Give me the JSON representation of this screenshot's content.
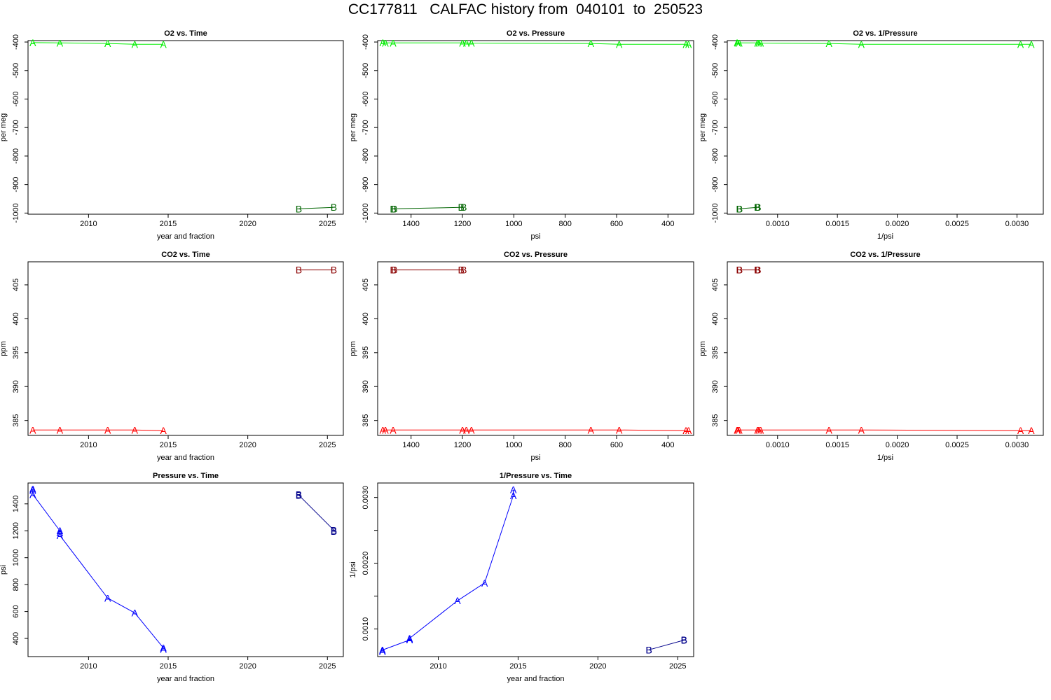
{
  "title": "CC177811   CALFAC history from  040101  to  250523",
  "colors": {
    "o2_a": "#00ee00",
    "o2_b": "#006400",
    "co2_a": "#ff0000",
    "co2_b": "#8b0000",
    "p_a": "#0000ff",
    "p_b": "#00008b"
  },
  "chart_data": [
    {
      "type": "line",
      "title": "O2 vs. Time",
      "xlabel": "year and fraction",
      "ylabel": "per meg",
      "xlim": [
        2006.2,
        2026.0
      ],
      "ylim": [
        -1004,
        -395
      ],
      "reverse_x": false,
      "xticks": [
        2010,
        2015,
        2020,
        2025
      ],
      "yticks": [
        -400,
        -500,
        -600,
        -700,
        -800,
        -900,
        -1000
      ],
      "series": [
        {
          "label": "A",
          "color": "o2_a",
          "x": [
            2006.5,
            2008.2,
            2011.2,
            2012.9,
            2014.7
          ],
          "y": [
            -402,
            -403,
            -405,
            -408,
            -408
          ]
        },
        {
          "label": "B",
          "color": "o2_b",
          "x": [
            2023.2,
            2025.4
          ],
          "y": [
            -985,
            -980
          ]
        }
      ]
    },
    {
      "type": "line",
      "title": "O2 vs. Pressure",
      "xlabel": "psi",
      "ylabel": "per meg",
      "xlim": [
        1530,
        300
      ],
      "ylim": [
        -1004,
        -395
      ],
      "reverse_x": true,
      "xticks": [
        1400,
        1200,
        1000,
        800,
        600,
        400
      ],
      "yticks": [
        -400,
        -500,
        -600,
        -700,
        -800,
        -900,
        -1000
      ],
      "series": [
        {
          "label": "A",
          "color": "o2_a",
          "x": [
            1510,
            1500,
            1470,
            1200,
            1185,
            1165,
            700,
            590,
            330,
            320
          ],
          "y": [
            -402,
            -403,
            -403,
            -403,
            -403,
            -404,
            -405,
            -408,
            -408,
            -408
          ]
        },
        {
          "label": "B",
          "color": "o2_b",
          "x": [
            1470,
            1465,
            1205,
            1195
          ],
          "y": [
            -985,
            -985,
            -980,
            -980
          ]
        }
      ]
    },
    {
      "type": "line",
      "title": "O2 vs. 1/Pressure",
      "xlabel": "1/psi",
      "ylabel": "per meg",
      "xlim": [
        0.00058,
        0.00322
      ],
      "ylim": [
        -1004,
        -395
      ],
      "reverse_x": false,
      "xticks": [
        0.001,
        0.0015,
        0.002,
        0.0025,
        0.003
      ],
      "yticks": [
        -400,
        -500,
        -600,
        -700,
        -800,
        -900,
        -1000
      ],
      "series": [
        {
          "label": "A",
          "color": "o2_a",
          "x": [
            0.000662,
            0.000667,
            0.00068,
            0.000833,
            0.000844,
            0.000858,
            0.00143,
            0.0017,
            0.00303,
            0.00312
          ],
          "y": [
            -402,
            -403,
            -403,
            -403,
            -403,
            -404,
            -405,
            -408,
            -408,
            -408
          ]
        },
        {
          "label": "B",
          "color": "o2_b",
          "x": [
            0.00068,
            0.000683,
            0.00083,
            0.000837
          ],
          "y": [
            -985,
            -985,
            -980,
            -980
          ]
        }
      ]
    },
    {
      "type": "line",
      "title": "CO2 vs. Time",
      "xlabel": "year and fraction",
      "ylabel": "ppm",
      "xlim": [
        2006.2,
        2026.0
      ],
      "ylim": [
        382.8,
        408.4
      ],
      "reverse_x": false,
      "xticks": [
        2010,
        2015,
        2020,
        2025
      ],
      "yticks": [
        385,
        390,
        395,
        400,
        405
      ],
      "series": [
        {
          "label": "A",
          "color": "co2_a",
          "x": [
            2006.5,
            2008.2,
            2011.2,
            2012.9,
            2014.7
          ],
          "y": [
            383.6,
            383.6,
            383.6,
            383.6,
            383.5
          ]
        },
        {
          "label": "B",
          "color": "co2_b",
          "x": [
            2023.2,
            2025.4
          ],
          "y": [
            407.2,
            407.2
          ]
        }
      ]
    },
    {
      "type": "line",
      "title": "CO2 vs. Pressure",
      "xlabel": "psi",
      "ylabel": "ppm",
      "xlim": [
        1530,
        300
      ],
      "ylim": [
        382.8,
        408.4
      ],
      "reverse_x": true,
      "xticks": [
        1400,
        1200,
        1000,
        800,
        600,
        400
      ],
      "yticks": [
        385,
        390,
        395,
        400,
        405
      ],
      "series": [
        {
          "label": "A",
          "color": "co2_a",
          "x": [
            1510,
            1500,
            1470,
            1200,
            1185,
            1165,
            700,
            590,
            330,
            320
          ],
          "y": [
            383.6,
            383.6,
            383.6,
            383.6,
            383.6,
            383.6,
            383.6,
            383.6,
            383.5,
            383.5
          ]
        },
        {
          "label": "B",
          "color": "co2_b",
          "x": [
            1470,
            1465,
            1205,
            1195
          ],
          "y": [
            407.2,
            407.2,
            407.2,
            407.2
          ]
        }
      ]
    },
    {
      "type": "line",
      "title": "CO2 vs. 1/Pressure",
      "xlabel": "1/psi",
      "ylabel": "ppm",
      "xlim": [
        0.00058,
        0.00322
      ],
      "ylim": [
        382.8,
        408.4
      ],
      "reverse_x": false,
      "xticks": [
        0.001,
        0.0015,
        0.002,
        0.0025,
        0.003
      ],
      "yticks": [
        385,
        390,
        395,
        400,
        405
      ],
      "series": [
        {
          "label": "A",
          "color": "co2_a",
          "x": [
            0.000662,
            0.000667,
            0.00068,
            0.000833,
            0.000844,
            0.000858,
            0.00143,
            0.0017,
            0.00303,
            0.00312
          ],
          "y": [
            383.6,
            383.6,
            383.6,
            383.6,
            383.6,
            383.6,
            383.6,
            383.6,
            383.5,
            383.5
          ]
        },
        {
          "label": "B",
          "color": "co2_b",
          "x": [
            0.00068,
            0.000683,
            0.00083,
            0.000837
          ],
          "y": [
            407.2,
            407.2,
            407.2,
            407.2
          ]
        }
      ]
    },
    {
      "type": "line",
      "title": "Pressure vs. Time",
      "xlabel": "year and fraction",
      "ylabel": "psi",
      "xlim": [
        2006.2,
        2026.0
      ],
      "ylim": [
        265,
        1555
      ],
      "reverse_x": false,
      "xticks": [
        2010,
        2015,
        2020,
        2025
      ],
      "yticks": [
        400,
        600,
        800,
        1000,
        1200,
        1400
      ],
      "series": [
        {
          "label": "A",
          "color": "p_a",
          "x": [
            2006.5,
            2006.5,
            2006.5,
            2008.2,
            2008.2,
            2008.2,
            2011.2,
            2012.9,
            2014.7,
            2014.7
          ],
          "y": [
            1510,
            1500,
            1470,
            1200,
            1185,
            1165,
            700,
            590,
            330,
            320
          ]
        },
        {
          "label": "B",
          "color": "p_b",
          "x": [
            2023.2,
            2023.2,
            2025.4,
            2025.4
          ],
          "y": [
            1470,
            1465,
            1205,
            1195
          ]
        }
      ]
    },
    {
      "type": "line",
      "title": "1/Pressure vs. Time",
      "xlabel": "year and fraction",
      "ylabel": "1/psi",
      "xlim": [
        2006.2,
        2026.0
      ],
      "ylim": [
        0.00058,
        0.00322
      ],
      "reverse_x": false,
      "xticks": [
        2010,
        2015,
        2020,
        2025
      ],
      "yticks": [
        0.001,
        0.002,
        0.003
      ],
      "yminor": [
        0.0015,
        0.0025
      ],
      "series": [
        {
          "label": "A",
          "color": "p_a",
          "x": [
            2006.5,
            2006.5,
            2006.5,
            2008.2,
            2008.2,
            2008.2,
            2011.2,
            2012.9,
            2014.7,
            2014.7
          ],
          "y": [
            0.000662,
            0.000667,
            0.00068,
            0.000833,
            0.000844,
            0.000858,
            0.00143,
            0.0017,
            0.00303,
            0.00312
          ]
        },
        {
          "label": "B",
          "color": "p_b",
          "x": [
            2023.2,
            2023.2,
            2025.4,
            2025.4
          ],
          "y": [
            0.00068,
            0.000683,
            0.00083,
            0.000837
          ]
        }
      ]
    }
  ]
}
